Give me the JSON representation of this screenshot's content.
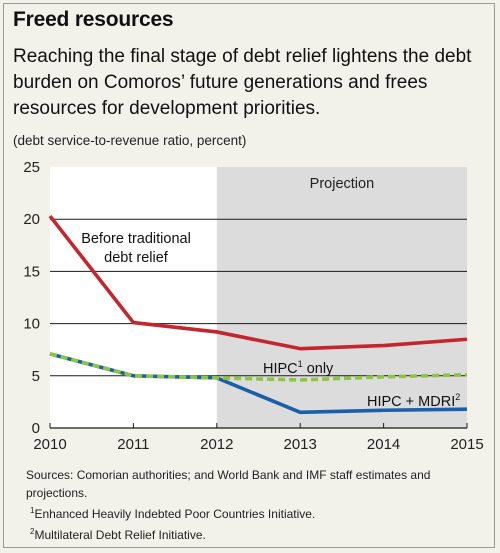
{
  "title": "Freed resources",
  "subtitle": "Reaching the final stage of debt relief lightens the debt burden on Comoros’ future generations and frees resources for development priorities.",
  "unit": "(debt service-to-revenue ratio, percent)",
  "colors": {
    "background": "#f2f1ea",
    "plot": "#ffffff",
    "projection": "#dcdcdc",
    "before": "#c4262e",
    "hipc": "#8cc63f",
    "mdri": "#1a5fa8"
  },
  "chart_data": {
    "type": "line",
    "x": [
      2010,
      2011,
      2012,
      2013,
      2014,
      2015
    ],
    "xticks": [
      "2010",
      "2011",
      "2012",
      "2013",
      "2014",
      "2015"
    ],
    "ylim": [
      0,
      25
    ],
    "yticks": [
      "0",
      "5",
      "10",
      "15",
      "20",
      "25"
    ],
    "grid": true,
    "projection": {
      "from": 2012,
      "to": 2015,
      "label": "Projection"
    },
    "series": [
      {
        "key": "before",
        "name": "Before traditional debt relief",
        "label_lines": [
          "Before traditional",
          "debt relief"
        ],
        "values": [
          20.3,
          10.1,
          9.2,
          7.6,
          7.9,
          8.5
        ]
      },
      {
        "key": "hipc",
        "name": "HIPC¹ only",
        "label_main": "HIPC",
        "label_sup": "1",
        "label_tail": " only",
        "values": [
          7.1,
          5.0,
          4.8,
          4.6,
          4.9,
          5.1
        ]
      },
      {
        "key": "mdri",
        "name": "HIPC + MDRI²",
        "label_main": "HIPC + MDRI",
        "label_sup": "2",
        "label_tail": "",
        "values": [
          7.1,
          5.0,
          4.8,
          1.5,
          1.7,
          1.8
        ]
      }
    ]
  },
  "notes": {
    "sources": "Sources: Comorian authorities; and World Bank and IMF staff estimates and projections.",
    "fn1_mark": "1",
    "fn1": "Enhanced Heavily Indebted Poor Countries Initiative.",
    "fn2_mark": "2",
    "fn2": "Multilateral Debt Relief Initiative."
  }
}
